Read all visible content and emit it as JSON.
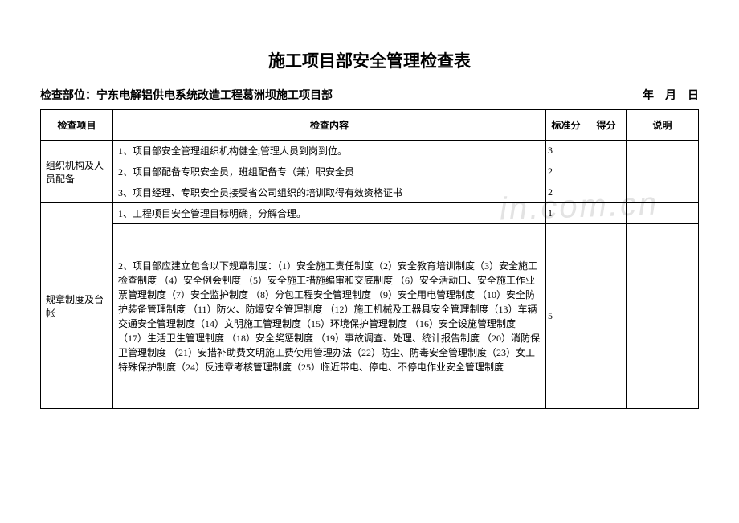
{
  "title": "施工项目部安全管理检查表",
  "subtitle_left": "检查部位：宁东电解铝供电系统改造工程葛洲坝施工项目部",
  "subtitle_right": "年　月　日",
  "watermark": "in.com.cn",
  "headers": {
    "item": "检查项目",
    "content": "检查内容",
    "std": "标准分",
    "score": "得分",
    "note": "说明"
  },
  "columns": {
    "item_width": 90,
    "std_width": 50,
    "score_width": 50,
    "note_width": 90
  },
  "sections": [
    {
      "item_label": "组织机构及人员配备",
      "rows": [
        {
          "content": "1、项目部安全管理组织机构健全,管理人员到岗到位。",
          "std": "3"
        },
        {
          "content": "2、项目部配备专职安全员，班组配备专（兼）职安全员",
          "std": "2"
        },
        {
          "content": "3、项目经理、专职安全员接受省公司组织的培训取得有效资格证书",
          "std": "2"
        }
      ]
    },
    {
      "item_label": "规章制度及台帐",
      "rows": [
        {
          "content": "1、工程项目安全管理目标明确，分解合理。",
          "std": "1"
        },
        {
          "content": "2、项目部应建立包含以下规章制度：（1）安全施工责任制度（2）安全教育培训制度（3）安全施工检查制度 （4）安全例会制度 （5）安全施工措施编审和交底制度 （6）安全活动日、安全施工作业票管理制度（7）安全监护制度 （8）分包工程安全管理制度 （9）安全用电管理制度 （10）安全防护装备管理制度 （11）防火、防爆安全管理制度 （12）施工机械及工器具安全管理制度（13）车辆交通安全管理制度（14）文明施工管理制度（15）环境保护管理制度 （16）安全设施管理制度 （17）生活卫生管理制度 （18）安全奖惩制度 （19）事故调查、处理、统计报告制度 （20）消防保卫管理制度 （21）安措补助费文明施工费使用管理办法（22）防尘、防毒安全管理制度（23）女工特殊保护制度（24）反违章考核管理制度（25）临近带电、停电、不停电作业安全管理制度",
          "std": "5",
          "big": true
        }
      ]
    }
  ],
  "colors": {
    "text": "#000000",
    "border": "#000000",
    "background": "#ffffff",
    "watermark": "#e3e3e3"
  },
  "typography": {
    "title_fontsize": 21,
    "subtitle_fontsize": 14,
    "body_fontsize": 12,
    "font_family": "SimSun"
  }
}
